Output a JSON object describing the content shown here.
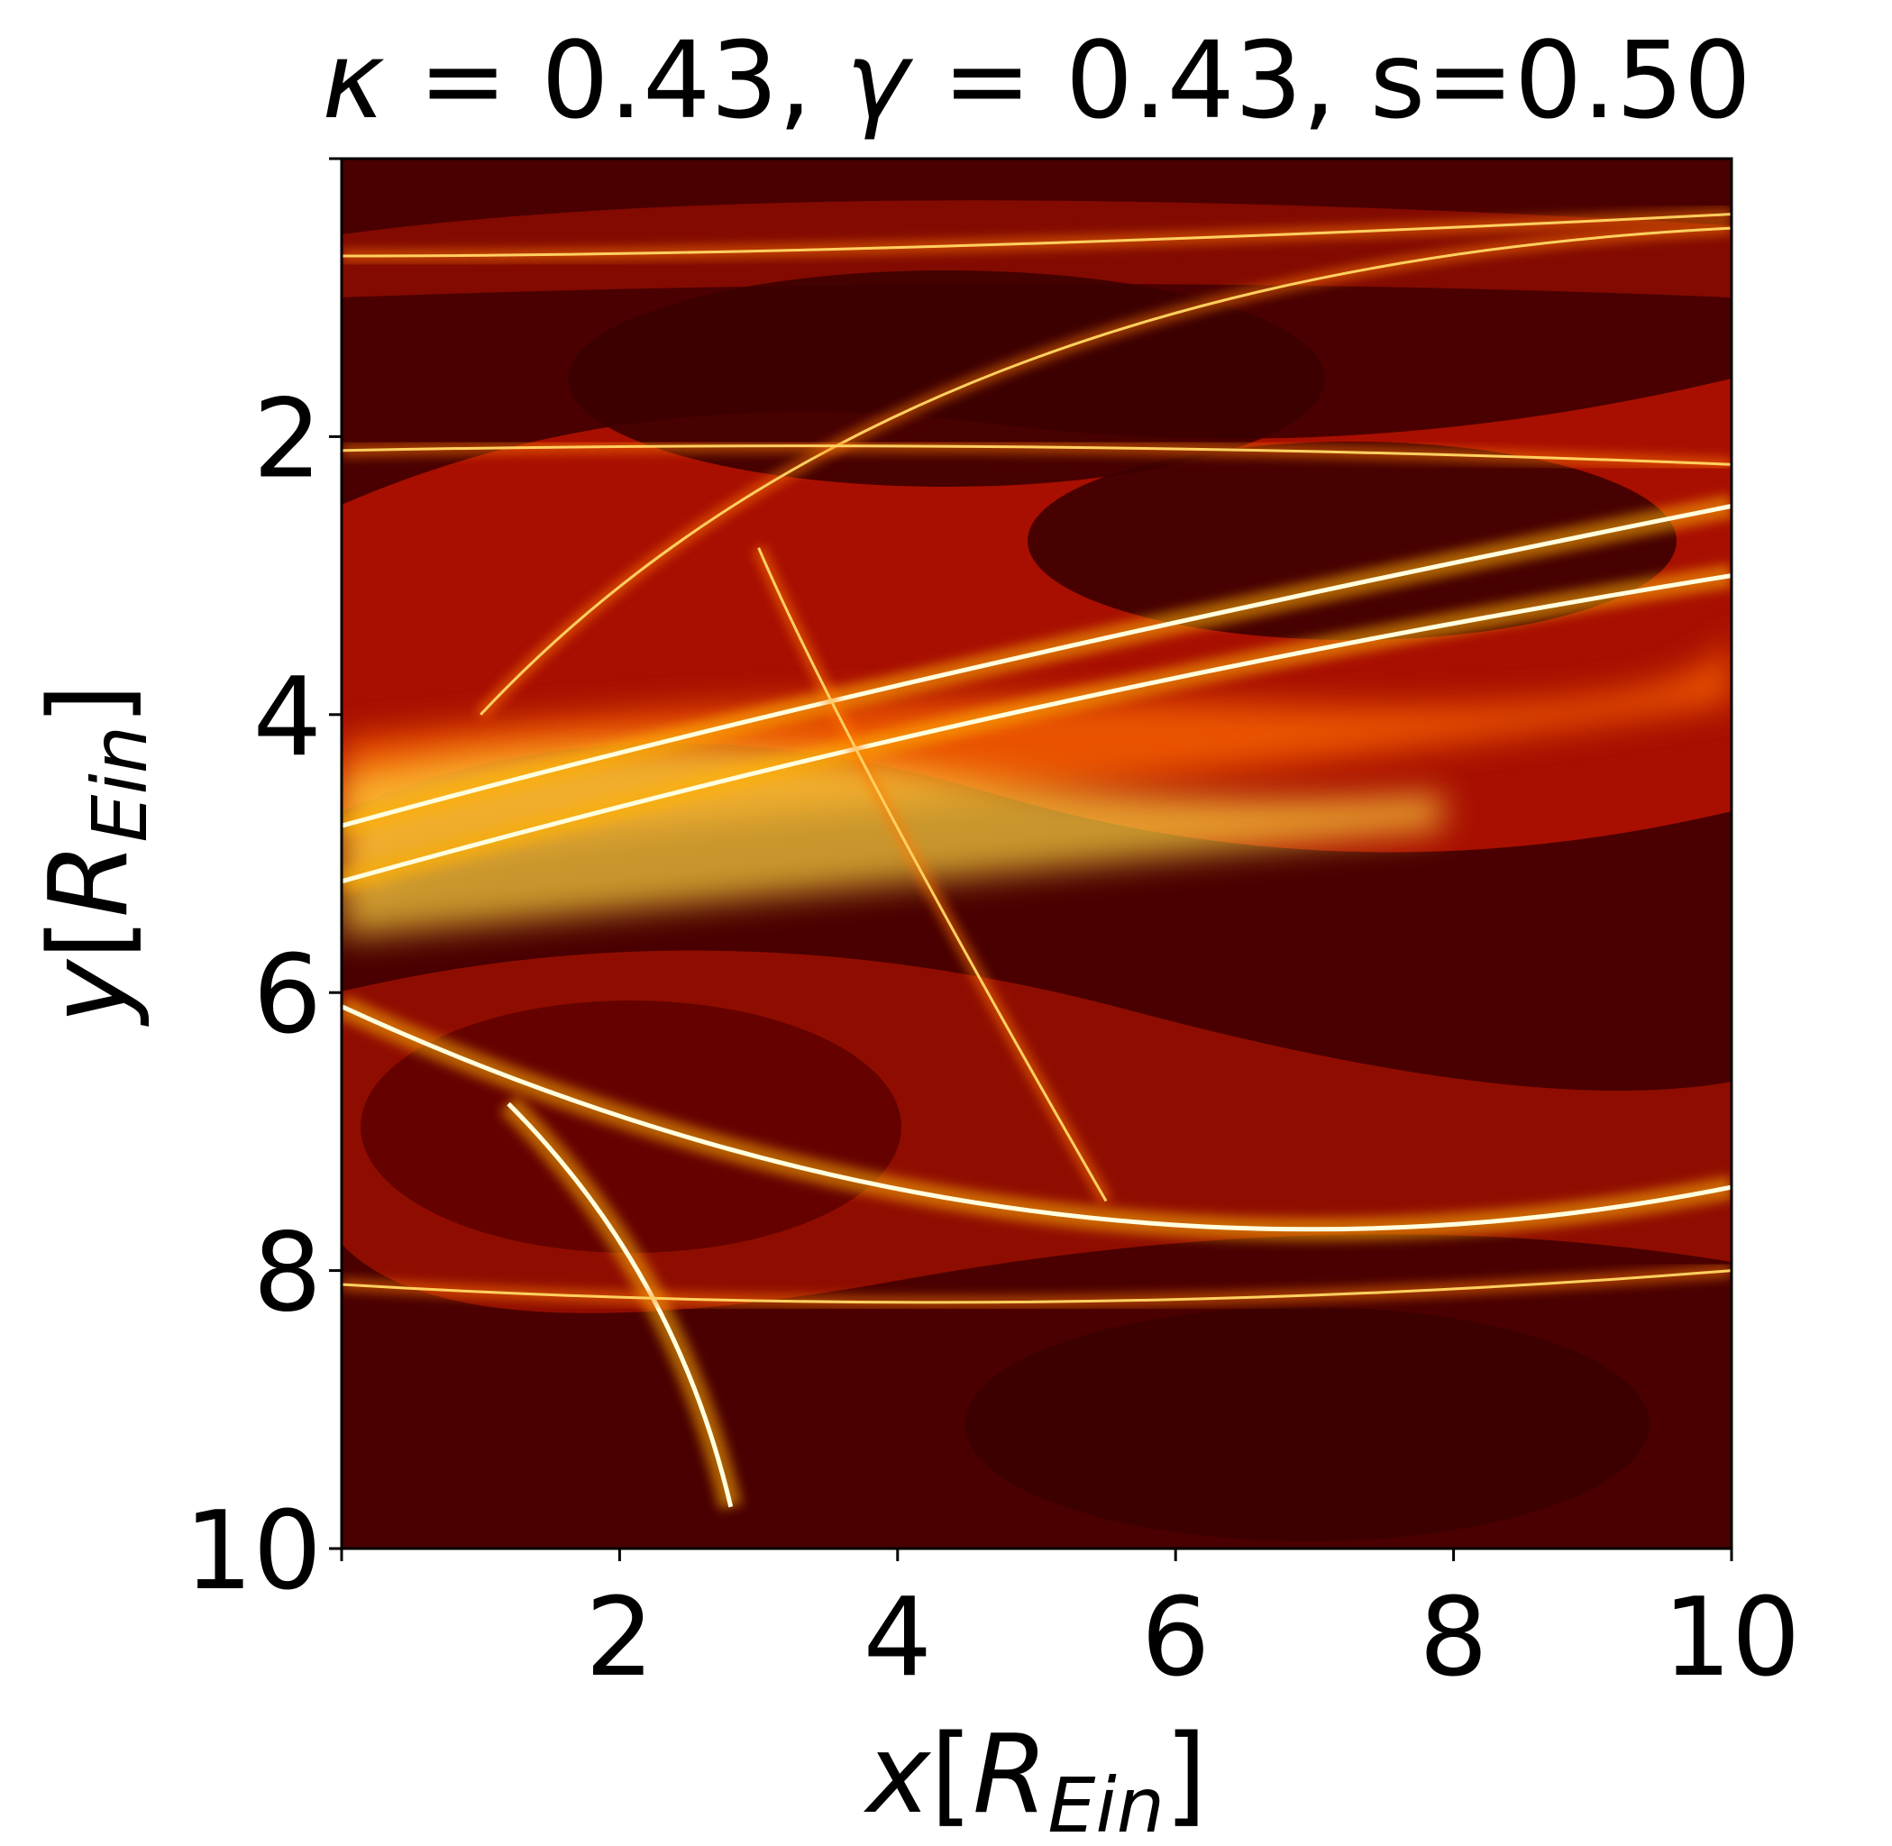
{
  "chart_data": {
    "type": "heatmap",
    "title": {
      "kappa_symbol": "κ",
      "kappa_eq": " = 0.43, ",
      "gamma_symbol": "γ",
      "gamma_eq": " = 0.43, s=0.50",
      "kappa": 0.43,
      "gamma": 0.43,
      "s": 0.5
    },
    "xlabel": {
      "var": "x",
      "open": "[",
      "R": "R",
      "sub": "Ein",
      "close": "]"
    },
    "ylabel": {
      "var": "y",
      "open": "[",
      "R": "R",
      "sub": "Ein",
      "close": "]"
    },
    "xlim": [
      0,
      10
    ],
    "ylim": [
      10,
      0
    ],
    "y_inverted": true,
    "xticks": [
      "2",
      "4",
      "6",
      "8",
      "10"
    ],
    "yticks": [
      "2",
      "4",
      "6",
      "8",
      "10"
    ],
    "xtick_values": [
      2,
      4,
      6,
      8,
      10
    ],
    "ytick_values": [
      2,
      4,
      6,
      8,
      10
    ],
    "colormap": [
      "#3a0000",
      "#7a0000",
      "#c81400",
      "#ff4a00",
      "#ffa000",
      "#ffe030",
      "#ffffc8"
    ],
    "caustic_lines": [
      {
        "from": [
          0,
          4.8
        ],
        "ctrl": [
          4,
          3.7
        ],
        "to": [
          10,
          2.5
        ],
        "level": "bright"
      },
      {
        "from": [
          0,
          5.2
        ],
        "ctrl": [
          5,
          3.8
        ],
        "to": [
          10,
          3.0
        ],
        "level": "bright"
      },
      {
        "from": [
          0,
          6.1
        ],
        "ctrl": [
          5,
          8.4
        ],
        "to": [
          10,
          7.4
        ],
        "level": "bright"
      },
      {
        "from": [
          2.8,
          9.7
        ],
        "ctrl": [
          2.4,
          8.0
        ],
        "to": [
          1.2,
          6.8
        ],
        "level": "bright"
      },
      {
        "from": [
          0,
          0.7
        ],
        "ctrl": [
          4,
          0.7
        ],
        "to": [
          10,
          0.4
        ],
        "level": "medium"
      },
      {
        "from": [
          1.0,
          4.0
        ],
        "ctrl": [
          4,
          0.8
        ],
        "to": [
          10,
          0.5
        ],
        "level": "medium"
      },
      {
        "from": [
          0,
          2.1
        ],
        "ctrl": [
          5,
          2.0
        ],
        "to": [
          10,
          2.2
        ],
        "level": "medium"
      },
      {
        "from": [
          0,
          8.1
        ],
        "ctrl": [
          5,
          8.4
        ],
        "to": [
          10,
          8.0
        ],
        "level": "medium"
      },
      {
        "from": [
          3.0,
          2.8
        ],
        "ctrl": [
          3.6,
          4.2
        ],
        "to": [
          5.5,
          7.5
        ],
        "level": "medium"
      }
    ]
  }
}
